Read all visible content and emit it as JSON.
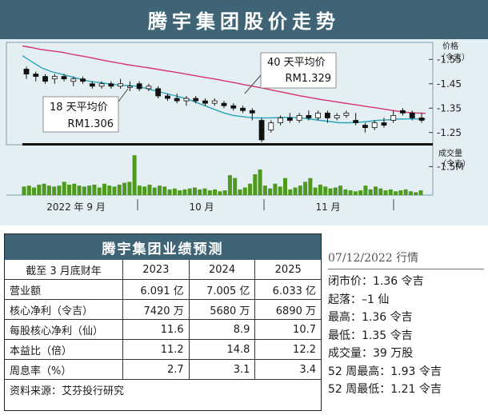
{
  "title": "腾宇集团股价走势",
  "chart_data": {
    "type": "line",
    "price_axis": {
      "unit_label": "价格",
      "unit_sub": "（令吉）",
      "ticks": [
        "1.55",
        "1.45",
        "1.35",
        "1.25"
      ],
      "tick_values": [
        1.55,
        1.45,
        1.35,
        1.25
      ],
      "ylim": [
        1.2,
        1.6
      ]
    },
    "volume_axis": {
      "unit_label": "成交量",
      "unit_sub": "（令吉）",
      "ticks": [
        "1.5M"
      ],
      "tick_values": [
        1.5
      ],
      "ylim": [
        0,
        2.4
      ]
    },
    "x_labels": [
      "2022 年 9 月",
      "10 月",
      "11 月"
    ],
    "series": [
      {
        "name": "40 天平均价",
        "value_label": "RM1.329",
        "color": "#d6336c",
        "values": [
          1.605,
          1.598,
          1.59,
          1.585,
          1.58,
          1.572,
          1.565,
          1.558,
          1.55,
          1.542,
          1.535,
          1.528,
          1.522,
          1.516,
          1.51,
          1.503,
          1.497,
          1.49,
          1.483,
          1.476,
          1.47,
          1.462,
          1.455,
          1.447,
          1.44,
          1.432,
          1.424,
          1.416,
          1.408,
          1.4,
          1.393,
          1.386,
          1.38,
          1.374,
          1.368,
          1.362,
          1.356,
          1.35,
          1.344,
          1.338,
          1.333,
          1.33,
          1.329
        ]
      },
      {
        "name": "18 天平均价",
        "value_label": "RM1.306",
        "color": "#29a3b8",
        "values": [
          1.565,
          1.54,
          1.515,
          1.5,
          1.49,
          1.48,
          1.47,
          1.46,
          1.455,
          1.45,
          1.445,
          1.443,
          1.44,
          1.43,
          1.42,
          1.41,
          1.4,
          1.39,
          1.375,
          1.36,
          1.345,
          1.33,
          1.32,
          1.315,
          1.31,
          1.31,
          1.31,
          1.312,
          1.312,
          1.31,
          1.305,
          1.3,
          1.295,
          1.29,
          1.29,
          1.292,
          1.295,
          1.3,
          1.302,
          1.305,
          1.306,
          1.306,
          1.306
        ]
      }
    ],
    "candles": [
      [
        1.51,
        1.49,
        1.52,
        1.47
      ],
      [
        1.49,
        1.48,
        1.5,
        1.46
      ],
      [
        1.48,
        1.46,
        1.49,
        1.45
      ],
      [
        1.47,
        1.48,
        1.49,
        1.45
      ],
      [
        1.48,
        1.47,
        1.49,
        1.46
      ],
      [
        1.46,
        1.47,
        1.48,
        1.44
      ],
      [
        1.47,
        1.46,
        1.48,
        1.45
      ],
      [
        1.45,
        1.44,
        1.46,
        1.43
      ],
      [
        1.44,
        1.45,
        1.46,
        1.43
      ],
      [
        1.45,
        1.44,
        1.46,
        1.43
      ],
      [
        1.44,
        1.45,
        1.47,
        1.43
      ],
      [
        1.44,
        1.44,
        1.46,
        1.42
      ],
      [
        1.45,
        1.43,
        1.46,
        1.42
      ],
      [
        1.43,
        1.44,
        1.45,
        1.42
      ],
      [
        1.43,
        1.4,
        1.44,
        1.39
      ],
      [
        1.4,
        1.39,
        1.41,
        1.38
      ],
      [
        1.39,
        1.38,
        1.41,
        1.37
      ],
      [
        1.38,
        1.39,
        1.4,
        1.36
      ],
      [
        1.39,
        1.38,
        1.4,
        1.37
      ],
      [
        1.38,
        1.37,
        1.39,
        1.36
      ],
      [
        1.37,
        1.38,
        1.39,
        1.36
      ],
      [
        1.37,
        1.36,
        1.38,
        1.35
      ],
      [
        1.36,
        1.35,
        1.37,
        1.34
      ],
      [
        1.35,
        1.34,
        1.36,
        1.33
      ],
      [
        1.34,
        1.33,
        1.35,
        1.3
      ],
      [
        1.3,
        1.22,
        1.31,
        1.21
      ],
      [
        1.26,
        1.29,
        1.3,
        1.25
      ],
      [
        1.29,
        1.31,
        1.32,
        1.28
      ],
      [
        1.31,
        1.3,
        1.33,
        1.29
      ],
      [
        1.3,
        1.32,
        1.33,
        1.29
      ],
      [
        1.32,
        1.31,
        1.34,
        1.3
      ],
      [
        1.31,
        1.33,
        1.34,
        1.3
      ],
      [
        1.33,
        1.31,
        1.34,
        1.29
      ],
      [
        1.31,
        1.32,
        1.33,
        1.3
      ],
      [
        1.32,
        1.33,
        1.34,
        1.31
      ],
      [
        1.3,
        1.29,
        1.33,
        1.28
      ],
      [
        1.28,
        1.27,
        1.29,
        1.25
      ],
      [
        1.27,
        1.29,
        1.3,
        1.26
      ],
      [
        1.29,
        1.28,
        1.31,
        1.27
      ],
      [
        1.3,
        1.32,
        1.34,
        1.29
      ],
      [
        1.34,
        1.33,
        1.35,
        1.32
      ],
      [
        1.33,
        1.31,
        1.34,
        1.3
      ],
      [
        1.31,
        1.3,
        1.33,
        1.29
      ]
    ],
    "volume": [
      0.45,
      0.5,
      0.4,
      0.55,
      0.6,
      0.5,
      0.45,
      0.5,
      0.7,
      0.55,
      0.6,
      0.5,
      0.45,
      0.5,
      0.55,
      0.4,
      0.6,
      0.5,
      0.45,
      0.55,
      0.65,
      0.7,
      2.1,
      0.5,
      0.45,
      0.55,
      0.4,
      0.5,
      0.45,
      0.3,
      0.35,
      0.25,
      0.3,
      0.35,
      0.4,
      0.3,
      0.35,
      0.25,
      0.3,
      0.2,
      0.25,
      1.05,
      0.9,
      0.3,
      0.4,
      0.6,
      1.1,
      1.35,
      0.5,
      0.35,
      0.6,
      0.45,
      0.9,
      0.3,
      0.4,
      0.5,
      0.7,
      0.9,
      0.4,
      0.55,
      0.45,
      0.35,
      0.4,
      0.5,
      0.3,
      0.25,
      0.2,
      0.25,
      0.5,
      0.3,
      0.45,
      0.35,
      0.25,
      0.3,
      0.2,
      0.25,
      0.3,
      0.2,
      0.15,
      0.25
    ]
  },
  "forecast": {
    "title": "腾宇集团业绩预测",
    "header": {
      "label": "截至 3 月底财年",
      "years": [
        "2023",
        "2024",
        "2025"
      ]
    },
    "rows": [
      {
        "label": "营业额",
        "values": [
          "6.091 亿",
          "7.005 亿",
          "6.033 亿"
        ]
      },
      {
        "label": "核心净利（令吉）",
        "values": [
          "7420 万",
          "5680 万",
          "6890 万"
        ]
      },
      {
        "label": "每股核心净利（仙）",
        "values": [
          "11.6",
          "8.9",
          "10.7"
        ]
      },
      {
        "label": "本益比（倍）",
        "values": [
          "11.2",
          "14.8",
          "12.2"
        ]
      },
      {
        "label": "周息率（%）",
        "values": [
          "2.7",
          "3.1",
          "3.4"
        ]
      }
    ],
    "source": "资料来源：艾芬投行研究"
  },
  "stats": {
    "date": "07/12/2022 行情",
    "lines": [
      "闭市价：1.36 令吉",
      "起落：–1 仙",
      "最高：1.36 令吉",
      "最低：1.35 令吉",
      "成交量：39 万股",
      "52 周最高：1.93 令吉",
      "52 周最低：1.21 令吉"
    ]
  },
  "colors": {
    "banner": "#3e6475",
    "chart_bg": "#e4eff4",
    "volume_bar": "#4e9a1e",
    "ma40": "#d6336c",
    "ma18": "#29a3b8",
    "candle": "#111111"
  }
}
